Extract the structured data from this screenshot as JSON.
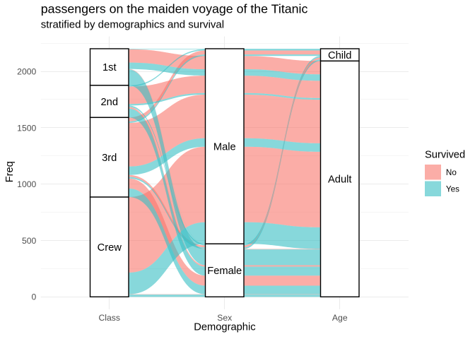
{
  "title": "passengers on the maiden voyage of the Titanic",
  "subtitle": "stratified by demographics and survival",
  "x_axis": {
    "title": "Demographic",
    "categories": [
      "Class",
      "Sex",
      "Age"
    ]
  },
  "y_axis": {
    "title": "Freq",
    "tick_labels": [
      "0",
      "500",
      "1000",
      "1500",
      "2000"
    ],
    "major_ticks": [
      0,
      500,
      1000,
      1500,
      2000
    ],
    "minor_ticks": [
      250,
      750,
      1250,
      1750,
      2250
    ]
  },
  "legend": {
    "title": "Survived",
    "entries": [
      {
        "label": "No",
        "color": "#F8766D"
      },
      {
        "label": "Yes",
        "color": "#37BEC3"
      }
    ],
    "fill_opacity": 0.6
  },
  "chart_data": {
    "type": "alluvial",
    "title": "passengers on the maiden voyage of the Titanic",
    "subtitle": "stratified by demographics and survival",
    "xlabel": "Demographic",
    "ylabel": "Freq",
    "ylim": [
      0,
      2201
    ],
    "grid": true,
    "legend_position": "right",
    "axes": [
      {
        "name": "Class",
        "strata": [
          "1st",
          "2nd",
          "3rd",
          "Crew"
        ]
      },
      {
        "name": "Sex",
        "strata": [
          "Male",
          "Female"
        ]
      },
      {
        "name": "Age",
        "strata": [
          "Child",
          "Adult"
        ]
      }
    ],
    "fill_variable": "Survived",
    "fill_levels": [
      "No",
      "Yes"
    ],
    "fill_colors": [
      "#F8766D",
      "#37BEC3"
    ],
    "rows": [
      [
        "1st",
        "Male",
        "Child",
        "No",
        0
      ],
      [
        "2nd",
        "Male",
        "Child",
        "No",
        0
      ],
      [
        "3rd",
        "Male",
        "Child",
        "No",
        35
      ],
      [
        "Crew",
        "Male",
        "Child",
        "No",
        0
      ],
      [
        "1st",
        "Female",
        "Child",
        "No",
        0
      ],
      [
        "2nd",
        "Female",
        "Child",
        "No",
        0
      ],
      [
        "3rd",
        "Female",
        "Child",
        "No",
        17
      ],
      [
        "Crew",
        "Female",
        "Child",
        "No",
        0
      ],
      [
        "1st",
        "Male",
        "Adult",
        "No",
        118
      ],
      [
        "2nd",
        "Male",
        "Adult",
        "No",
        154
      ],
      [
        "3rd",
        "Male",
        "Adult",
        "No",
        387
      ],
      [
        "Crew",
        "Male",
        "Adult",
        "No",
        670
      ],
      [
        "1st",
        "Female",
        "Adult",
        "No",
        4
      ],
      [
        "2nd",
        "Female",
        "Adult",
        "No",
        13
      ],
      [
        "3rd",
        "Female",
        "Adult",
        "No",
        89
      ],
      [
        "Crew",
        "Female",
        "Adult",
        "No",
        3
      ],
      [
        "1st",
        "Male",
        "Child",
        "Yes",
        5
      ],
      [
        "2nd",
        "Male",
        "Child",
        "Yes",
        11
      ],
      [
        "3rd",
        "Male",
        "Child",
        "Yes",
        13
      ],
      [
        "Crew",
        "Male",
        "Child",
        "Yes",
        0
      ],
      [
        "1st",
        "Female",
        "Child",
        "Yes",
        1
      ],
      [
        "2nd",
        "Female",
        "Child",
        "Yes",
        13
      ],
      [
        "3rd",
        "Female",
        "Child",
        "Yes",
        14
      ],
      [
        "Crew",
        "Female",
        "Child",
        "Yes",
        0
      ],
      [
        "1st",
        "Male",
        "Adult",
        "Yes",
        57
      ],
      [
        "2nd",
        "Male",
        "Adult",
        "Yes",
        14
      ],
      [
        "3rd",
        "Male",
        "Adult",
        "Yes",
        75
      ],
      [
        "Crew",
        "Male",
        "Adult",
        "Yes",
        192
      ],
      [
        "1st",
        "Female",
        "Adult",
        "Yes",
        140
      ],
      [
        "2nd",
        "Female",
        "Adult",
        "Yes",
        80
      ],
      [
        "3rd",
        "Female",
        "Adult",
        "Yes",
        76
      ],
      [
        "Crew",
        "Female",
        "Adult",
        "Yes",
        20
      ]
    ]
  }
}
